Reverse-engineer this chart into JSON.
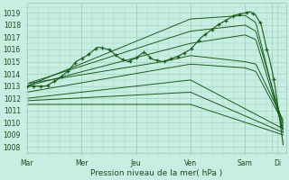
{
  "bg_color": "#c8eee4",
  "grid_color": "#a0d4c0",
  "line_color": "#1a5c1a",
  "ylim": [
    1007.5,
    1019.8
  ],
  "ylabel_ticks": [
    1008,
    1009,
    1010,
    1011,
    1012,
    1013,
    1014,
    1015,
    1016,
    1017,
    1018,
    1019
  ],
  "xtick_labels": [
    "Mar",
    "Mer",
    "Jeu",
    "Ven",
    "Sam",
    "Di"
  ],
  "xtick_pos": [
    0.0,
    1.0,
    2.0,
    3.0,
    4.0,
    4.6
  ],
  "xlabel": "Pression niveau de la mer( hPa )",
  "figsize": [
    3.2,
    2.0
  ],
  "dpi": 100
}
